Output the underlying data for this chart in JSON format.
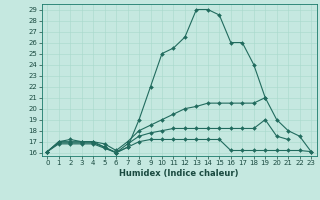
{
  "title": "",
  "xlabel": "Humidex (Indice chaleur)",
  "ylabel": "",
  "background_color": "#c5e8e0",
  "line_color": "#216b5e",
  "xlim": [
    -0.5,
    23.5
  ],
  "ylim": [
    15.7,
    29.5
  ],
  "xticks": [
    0,
    1,
    2,
    3,
    4,
    5,
    6,
    7,
    8,
    9,
    10,
    11,
    12,
    13,
    14,
    15,
    16,
    17,
    18,
    19,
    20,
    21,
    22,
    23
  ],
  "yticks": [
    16,
    17,
    18,
    19,
    20,
    21,
    22,
    23,
    24,
    25,
    26,
    27,
    28,
    29
  ],
  "curves": [
    {
      "x": [
        0,
        1,
        2,
        3,
        4,
        5,
        6,
        7,
        8,
        9,
        10,
        11,
        12,
        13,
        14,
        15,
        16,
        17,
        18,
        19,
        20,
        21,
        22,
        23
      ],
      "y": [
        16.1,
        17.0,
        17.0,
        17.0,
        17.0,
        16.5,
        16.0,
        16.5,
        19.0,
        22.0,
        25.0,
        25.5,
        26.5,
        29.0,
        29.0,
        28.5,
        26.0,
        26.0,
        24.0,
        21.0,
        null,
        null,
        null,
        null
      ]
    },
    {
      "x": [
        0,
        1,
        2,
        3,
        4,
        5,
        6,
        7,
        8,
        9,
        10,
        11,
        12,
        13,
        14,
        15,
        16,
        17,
        18,
        19,
        20,
        21,
        22,
        23
      ],
      "y": [
        16.1,
        17.0,
        17.2,
        17.0,
        17.0,
        16.8,
        16.2,
        17.0,
        18.0,
        18.5,
        19.0,
        19.5,
        20.0,
        20.2,
        20.5,
        20.5,
        20.5,
        20.5,
        20.5,
        21.0,
        19.0,
        18.0,
        17.5,
        16.1
      ]
    },
    {
      "x": [
        0,
        1,
        2,
        3,
        4,
        5,
        6,
        7,
        8,
        9,
        10,
        11,
        12,
        13,
        14,
        15,
        16,
        17,
        18,
        19,
        20,
        21,
        22,
        23
      ],
      "y": [
        16.1,
        16.9,
        16.9,
        16.9,
        16.9,
        16.5,
        16.0,
        16.8,
        17.5,
        17.8,
        18.0,
        18.2,
        18.2,
        18.2,
        18.2,
        18.2,
        18.2,
        18.2,
        18.2,
        19.0,
        17.5,
        17.2,
        null,
        null
      ]
    },
    {
      "x": [
        0,
        1,
        2,
        3,
        4,
        5,
        6,
        7,
        8,
        9,
        10,
        11,
        12,
        13,
        14,
        15,
        16,
        17,
        18,
        19,
        20,
        21,
        22,
        23
      ],
      "y": [
        16.1,
        16.8,
        16.8,
        16.8,
        16.8,
        16.4,
        16.0,
        16.5,
        17.0,
        17.2,
        17.2,
        17.2,
        17.2,
        17.2,
        17.2,
        17.2,
        16.2,
        16.2,
        16.2,
        16.2,
        16.2,
        16.2,
        16.2,
        16.1
      ]
    }
  ]
}
